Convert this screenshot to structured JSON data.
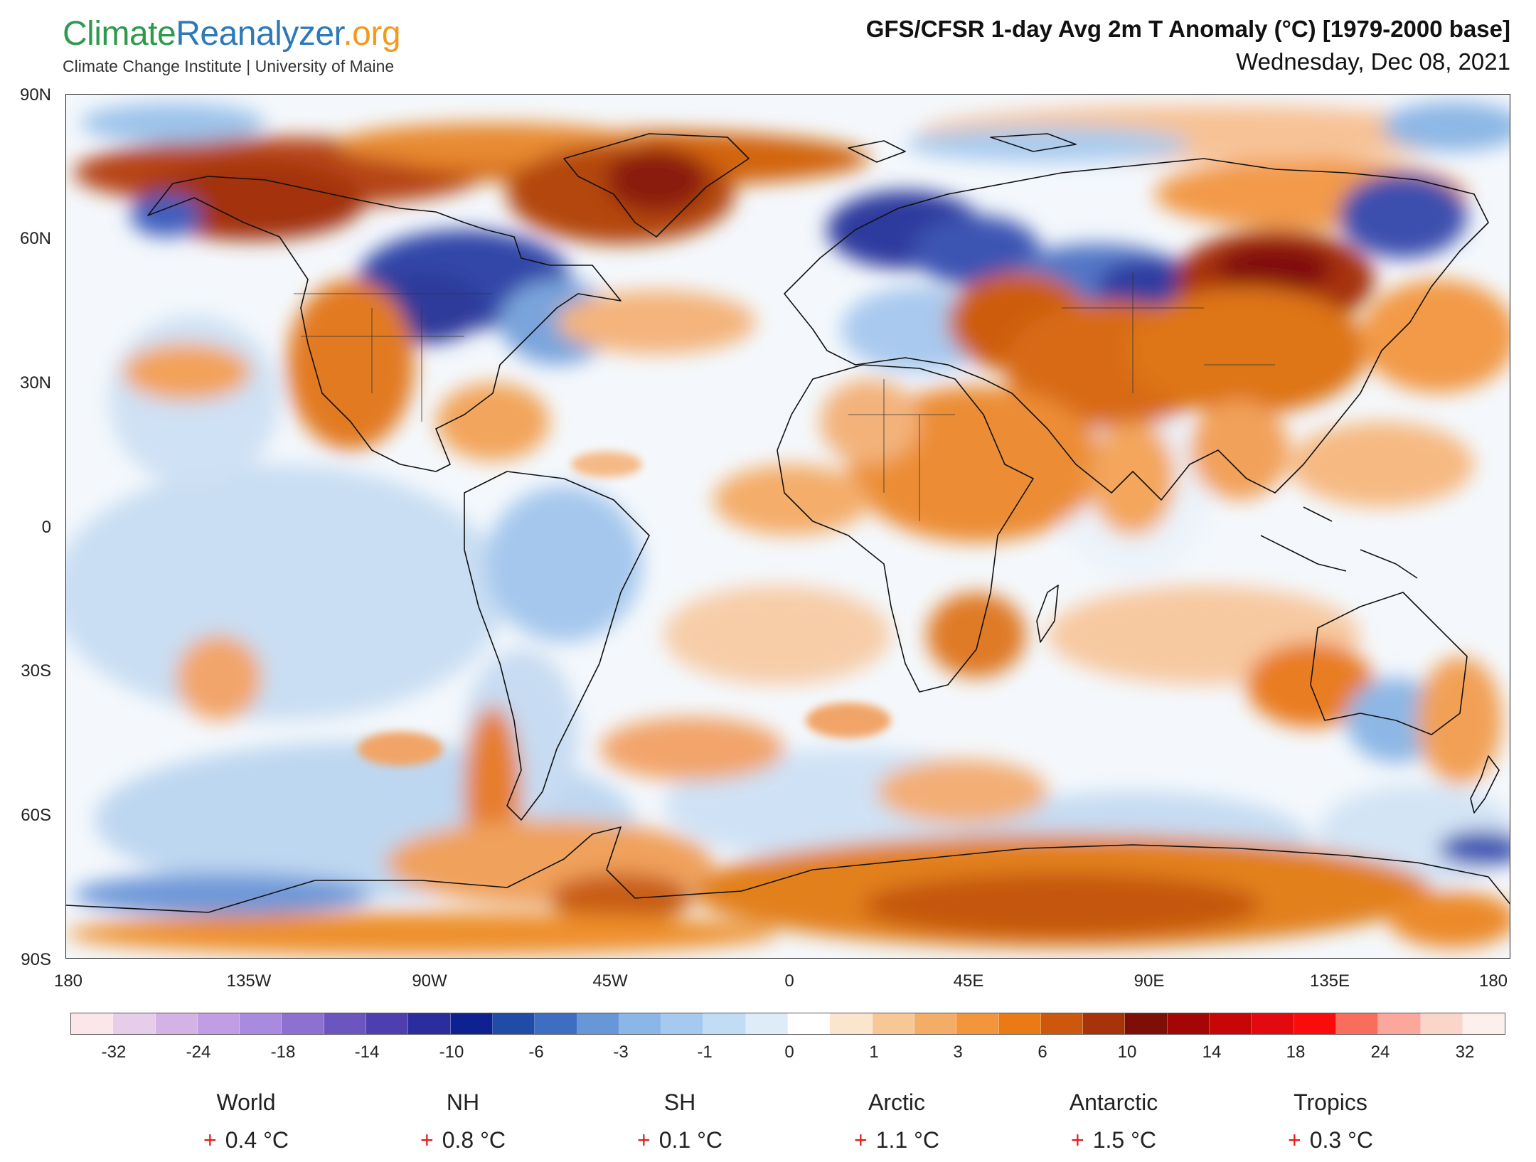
{
  "logo": {
    "part1": "Climate",
    "part2": "Reanalyzer",
    "part3": ".org",
    "subtitle": "Climate Change Institute | University of Maine"
  },
  "header": {
    "title": "GFS/CFSR 1-day Avg 2m T Anomaly (°C) [1979-2000 base]",
    "date": "Wednesday, Dec 08, 2021"
  },
  "axes": {
    "lat_labels": [
      "90N",
      "60N",
      "30N",
      "0",
      "30S",
      "60S",
      "90S"
    ],
    "lon_labels": [
      "180",
      "135W",
      "90W",
      "45W",
      "0",
      "45E",
      "90E",
      "135E",
      "180"
    ]
  },
  "colorbar": {
    "colors": [
      "#fbe6ea",
      "#e6cde9",
      "#d4b2e6",
      "#c19ee3",
      "#a98ae0",
      "#8d70cf",
      "#6d55bf",
      "#4d3fb0",
      "#2b2d9e",
      "#0e2190",
      "#1f4ca6",
      "#3e6ec1",
      "#6897d8",
      "#8bb7e8",
      "#a6c9ef",
      "#c3dcf5",
      "#deebf8",
      "#ffffff",
      "#fbe5cc",
      "#f7c896",
      "#f4ad66",
      "#f2953d",
      "#ea7a14",
      "#cb580d",
      "#a6330a",
      "#7e0e08",
      "#a40606",
      "#c80608",
      "#e20a0e",
      "#fb0c0c",
      "#fa6c5c",
      "#fba79c",
      "#f9d6c9",
      "#fdf0ec"
    ],
    "tick_labels": [
      "-32",
      "-24",
      "-18",
      "-14",
      "-10",
      "-6",
      "-3",
      "-1",
      "0",
      "1",
      "3",
      "6",
      "10",
      "14",
      "18",
      "24",
      "32"
    ]
  },
  "stats": [
    {
      "name": "World",
      "sign": "+",
      "value": "0.4 °C"
    },
    {
      "name": "NH",
      "sign": "+",
      "value": "0.8 °C"
    },
    {
      "name": "SH",
      "sign": "+",
      "value": "0.1 °C"
    },
    {
      "name": "Arctic",
      "sign": "+",
      "value": "1.1 °C"
    },
    {
      "name": "Antarctic",
      "sign": "+",
      "value": "1.5 °C"
    },
    {
      "name": "Tropics",
      "sign": "+",
      "value": "0.3 °C"
    }
  ]
}
